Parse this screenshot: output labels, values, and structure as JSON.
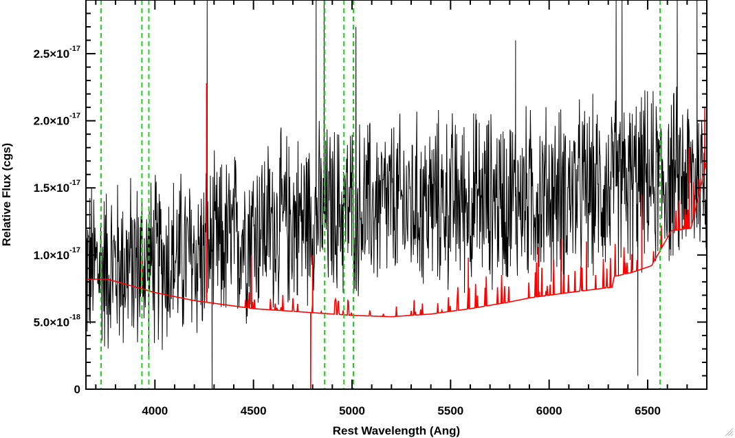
{
  "chart_data": {
    "type": "line",
    "xlabel": "Rest Wavelength (Ang)",
    "ylabel": "Relative Flux (cgs)",
    "xlim": [
      3650,
      6800
    ],
    "ylim": [
      0,
      2.9e-17
    ],
    "x_ticks": [
      {
        "value": 4000,
        "label": "4000"
      },
      {
        "value": 4500,
        "label": "4500"
      },
      {
        "value": 5000,
        "label": "5000"
      },
      {
        "value": 5500,
        "label": "5500"
      },
      {
        "value": 6000,
        "label": "6000"
      },
      {
        "value": 6500,
        "label": "6500"
      }
    ],
    "x_minor_step": 100,
    "y_ticks": [
      {
        "value": 0,
        "mantissa": "0",
        "exponent": ""
      },
      {
        "value": 5e-18,
        "mantissa": "5.0×10",
        "exponent": "-18"
      },
      {
        "value": 1e-17,
        "mantissa": "1.0×10",
        "exponent": "-17"
      },
      {
        "value": 1.5e-17,
        "mantissa": "1.5×10",
        "exponent": "-17"
      },
      {
        "value": 2e-17,
        "mantissa": "2.0×10",
        "exponent": "-17"
      },
      {
        "value": 2.5e-17,
        "mantissa": "2.5×10",
        "exponent": "-17"
      }
    ],
    "y_minor_step": 1e-18,
    "grid": false,
    "reference_lines": {
      "color": "#22cc22",
      "style": "dashed",
      "x": [
        3727,
        3934,
        3969,
        4861,
        4959,
        5007,
        6563
      ]
    },
    "series": [
      {
        "color": "#000000",
        "style": "noisy-spectrum",
        "continuum": [
          [
            3650,
            9e-18
          ],
          [
            4000,
            9.5e-18
          ],
          [
            4250,
            1e-17
          ],
          [
            4500,
            1.2e-17
          ],
          [
            5000,
            1.35e-17
          ],
          [
            5500,
            1.4e-17
          ],
          [
            6000,
            1.45e-17
          ],
          [
            6300,
            1.5e-17
          ],
          [
            6500,
            1.55e-17
          ],
          [
            6800,
            1.6e-17
          ]
        ],
        "noise_amplitude": 5.5e-18,
        "spikes": [
          [
            4265,
            2.9e-17
          ],
          [
            4818,
            2.9e-17
          ],
          [
            4858,
            2.9e-17
          ],
          [
            6340,
            2.9e-17
          ],
          [
            6370,
            2.9e-17
          ],
          [
            6650,
            2.9e-17
          ],
          [
            6750,
            2.9e-17
          ],
          [
            5020,
            2.7e-17
          ],
          [
            5830,
            2.6e-17
          ],
          [
            6450,
            1e-18
          ],
          [
            4290,
            0.0
          ]
        ]
      },
      {
        "color": "#ff0000",
        "style": "model-spectrum",
        "continuum": [
          [
            3650,
            8.2e-18
          ],
          [
            3760,
            8.2e-18
          ],
          [
            4000,
            7.2e-18
          ],
          [
            4200,
            6.6e-18
          ],
          [
            4300,
            6.4e-18
          ],
          [
            4500,
            6e-18
          ],
          [
            4800,
            5.7e-18
          ],
          [
            5000,
            5.5e-18
          ],
          [
            5200,
            5.4e-18
          ],
          [
            5400,
            5.6e-18
          ],
          [
            5600,
            6e-18
          ],
          [
            5800,
            6.5e-18
          ],
          [
            5900,
            6.8e-18
          ],
          [
            6100,
            7.2e-18
          ],
          [
            6320,
            7.6e-18
          ],
          [
            6330,
            8.4e-18
          ],
          [
            6420,
            8.7e-18
          ],
          [
            6520,
            9.2e-18
          ],
          [
            6570,
            1.05e-17
          ],
          [
            6620,
            1.18e-17
          ],
          [
            6720,
            1.2e-17
          ],
          [
            6800,
            1.7e-17
          ]
        ],
        "spikes": [
          [
            3935,
            9.7e-18
          ],
          [
            4262,
            2.28e-17
          ],
          [
            4490,
            1e-17
          ],
          [
            4800,
            1e-17
          ],
          [
            5590,
            9.8e-18
          ],
          [
            5945,
            1.06e-17
          ],
          [
            6060,
            1.12e-17
          ],
          [
            6190,
            1.1e-17
          ],
          [
            6470,
            1.45e-17
          ],
          [
            6710,
            1.8e-17
          ],
          [
            6790,
            2.1e-17
          ],
          [
            6800,
            2.35e-17
          ]
        ],
        "dips": [
          [
            4790,
            0.0
          ]
        ]
      }
    ]
  }
}
